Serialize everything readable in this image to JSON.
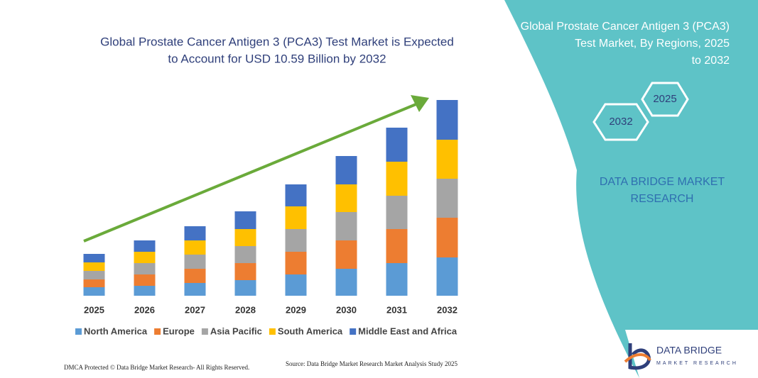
{
  "chart_data": {
    "type": "stacked_bar",
    "title": "Global Prostate Cancer Antigen 3 (PCA3) Test Market is Expected to Account for USD 10.59 Billion by 2032",
    "categories": [
      "2025",
      "2026",
      "2027",
      "2028",
      "2029",
      "2030",
      "2031",
      "2032"
    ],
    "series": [
      {
        "name": "North America",
        "color": "#5b9bd5",
        "values": [
          12,
          14,
          18,
          22,
          30,
          38,
          46,
          54
        ]
      },
      {
        "name": "Europe",
        "color": "#ed7d31",
        "values": [
          11,
          16,
          20,
          24,
          32,
          40,
          48,
          56
        ]
      },
      {
        "name": "Asia Pacific",
        "color": "#a5a5a5",
        "values": [
          12,
          16,
          20,
          24,
          32,
          40,
          47,
          55
        ]
      },
      {
        "name": "South America",
        "color": "#ffc000",
        "values": [
          12,
          16,
          20,
          24,
          32,
          39,
          48,
          55
        ]
      },
      {
        "name": "Middle East and Africa",
        "color": "#4472c4",
        "values": [
          12,
          16,
          20,
          25,
          31,
          40,
          48,
          56
        ]
      }
    ],
    "ylim": [
      0,
      280
    ],
    "legend": "bottom",
    "trend_arrow_color": "#6aaa3a"
  },
  "panel": {
    "title": "Global Prostate Cancer Antigen 3 (PCA3) Test Market, By Regions, 2025 to 2032",
    "hex_start": "2025",
    "hex_end": "2032",
    "brand": "DATA BRIDGE MARKET RESEARCH"
  },
  "footer": {
    "dmca": "DMCA Protected © Data Bridge Market Research- All Rights Reserved.",
    "source": "Source: Data Bridge Market Research Market Analysis Study 2025",
    "logo_name": "DATA BRIDGE",
    "logo_sub": "MARKET RESEARCH"
  }
}
